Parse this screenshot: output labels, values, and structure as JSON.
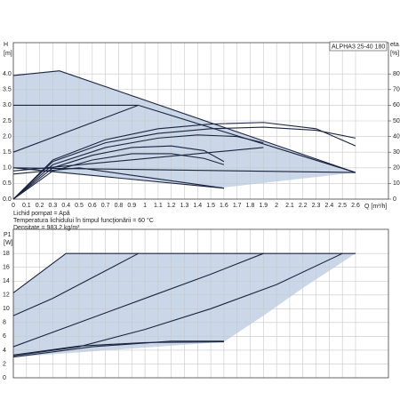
{
  "chart_data": [
    {
      "type": "line",
      "title": "ALPHA3 25-40 180",
      "ylabel": [
        "H",
        "[m]"
      ],
      "y2label": [
        "eta",
        "[%]"
      ],
      "xlabel": "Q [m³/h]",
      "notes": [
        "Lichid pompat = Apă",
        "Temperatura lichidului în timpul funcţionării = 60 °C",
        "Densitate = 983.2 kg/m³"
      ],
      "xlim": [
        0,
        2.85
      ],
      "xticks": [
        0,
        0.1,
        0.2,
        0.3,
        0.4,
        0.5,
        0.6,
        0.7,
        0.8,
        0.9,
        1,
        1.1,
        1.2,
        1.3,
        1.4,
        1.5,
        1.6,
        1.7,
        1.8,
        1.9,
        2,
        2.1,
        2.2,
        2.3,
        2.4,
        2.5,
        2.6
      ],
      "ylim": [
        0,
        5
      ],
      "yticks": [
        {
          "value": 0,
          "label": "0.0"
        },
        {
          "value": 0.5,
          "label": "0.5"
        },
        {
          "value": 1,
          "label": "1.0"
        },
        {
          "value": 1.5,
          "label": "1.5"
        },
        {
          "value": 2,
          "label": "2.0"
        },
        {
          "value": 2.5,
          "label": "2.5"
        },
        {
          "value": 3,
          "label": "3.0"
        },
        {
          "value": 3.5,
          "label": "3.5"
        },
        {
          "value": 4,
          "label": "4.0"
        }
      ],
      "y2lim": [
        0,
        100
      ],
      "y2ticks": [
        0,
        10,
        20,
        30,
        40,
        50,
        60,
        70,
        80
      ],
      "grid": true,
      "color": "#1b2440",
      "area": {
        "color": "#c9d7e8",
        "x": [
          0,
          0.35,
          2.6,
          1.55,
          0
        ],
        "values": [
          3.95,
          4.1,
          0.85,
          0.35,
          1.0
        ]
      },
      "series": [
        {
          "x": [
            0,
            0.35,
            2.6
          ],
          "values": [
            3.95,
            4.1,
            0.85
          ]
        },
        {
          "x": [
            0,
            0.95
          ],
          "values": [
            3.0,
            3.0
          ]
        },
        {
          "x": [
            0,
            0.95,
            2.6
          ],
          "values": [
            1.5,
            3.0,
            0.85
          ]
        },
        {
          "x": [
            0,
            2.6
          ],
          "values": [
            1.0,
            0.85
          ]
        },
        {
          "x": [
            0,
            0.5,
            1.6
          ],
          "values": [
            0.8,
            1.0,
            0.35
          ]
        },
        {
          "x": [
            0,
            1.9
          ],
          "values": [
            0.9,
            1.65
          ]
        },
        {
          "x": [
            0,
            1.6
          ],
          "values": [
            1.0,
            0.35
          ]
        },
        {
          "axis": "y2",
          "x": [
            0,
            0.3,
            0.7,
            1.1,
            1.5,
            1.9,
            2.3,
            2.6
          ],
          "values": [
            0,
            25,
            38,
            45,
            48,
            49,
            45,
            34
          ]
        },
        {
          "axis": "y2",
          "x": [
            0,
            0.3,
            0.7,
            1.1,
            1.5,
            1.9,
            2.3,
            2.6
          ],
          "values": [
            0,
            24,
            36,
            42,
            45,
            46,
            44,
            39
          ]
        },
        {
          "axis": "y2",
          "x": [
            0,
            0.3,
            0.7,
            1.1,
            1.4,
            1.7,
            1.9
          ],
          "values": [
            0,
            22,
            33,
            39,
            41,
            40,
            36
          ]
        },
        {
          "axis": "y2",
          "x": [
            0,
            0.3,
            0.6,
            0.9,
            1.2,
            1.45,
            1.6
          ],
          "values": [
            0,
            20,
            28,
            33,
            34,
            31,
            24
          ]
        },
        {
          "axis": "y2",
          "x": [
            0,
            0.3,
            0.6,
            0.9,
            1.2,
            1.45,
            1.6
          ],
          "values": [
            0,
            18,
            25,
            29,
            29,
            26,
            22
          ]
        }
      ]
    },
    {
      "type": "line",
      "ylabel": [
        "P1",
        "[W]"
      ],
      "xlim": [
        0,
        2.85
      ],
      "xticks": [
        0,
        0.1,
        0.2,
        0.3,
        0.4,
        0.5,
        0.6,
        0.7,
        0.8,
        0.9,
        1,
        1.1,
        1.2,
        1.3,
        1.4,
        1.5,
        1.6,
        1.7,
        1.8,
        1.9,
        2,
        2.1,
        2.2,
        2.3,
        2.4,
        2.5,
        2.6
      ],
      "ylim": [
        0,
        21.5
      ],
      "yticks": [
        0,
        2,
        4,
        6,
        8,
        10,
        12,
        14,
        16,
        18
      ],
      "grid": true,
      "color": "#1b2440",
      "area": {
        "color": "#c9d7e8",
        "x": [
          0,
          0.4,
          2.6,
          2.2,
          1.9,
          1.6,
          0
        ],
        "values": [
          12.3,
          18,
          18,
          13,
          9,
          5.2,
          3
        ]
      },
      "series": [
        {
          "x": [
            0,
            0.4,
            2.6
          ],
          "values": [
            12.3,
            18,
            18
          ]
        },
        {
          "x": [
            0,
            0.3,
            0.6,
            0.95
          ],
          "values": [
            9,
            11.5,
            14.5,
            18
          ]
        },
        {
          "x": [
            0,
            0.5,
            1.0,
            1.5,
            1.9
          ],
          "values": [
            4.5,
            8,
            11.5,
            15,
            18
          ]
        },
        {
          "x": [
            0,
            0.5,
            1.0,
            1.5,
            2.0,
            2.5
          ],
          "values": [
            3.2,
            4.5,
            7,
            10,
            13.5,
            18
          ]
        },
        {
          "x": [
            0,
            0.6,
            1.2,
            1.6
          ],
          "values": [
            3,
            4.5,
            5.3,
            5.3
          ]
        },
        {
          "x": [
            0,
            0.5,
            1.0,
            1.6
          ],
          "values": [
            3.3,
            4.6,
            5.1,
            5.2
          ]
        }
      ]
    }
  ]
}
